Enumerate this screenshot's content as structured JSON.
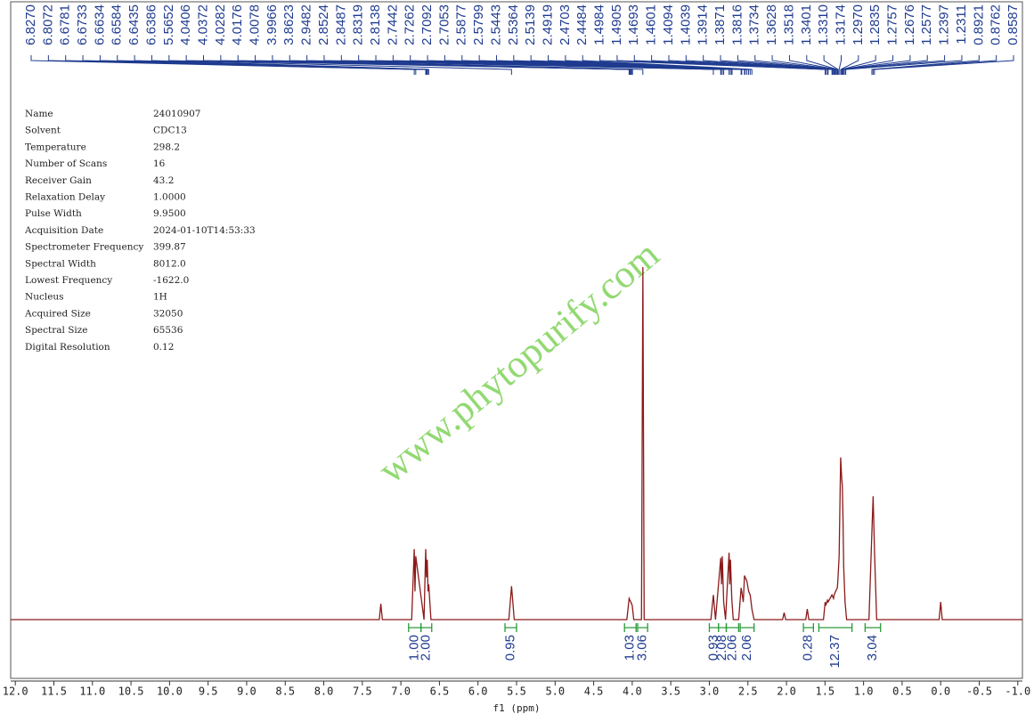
{
  "chart_data": {
    "type": "nmr",
    "xlabel": "f1 (ppm)",
    "xlim": [
      12.06,
      -1.06
    ],
    "ylim": [
      0,
      100
    ],
    "xticks": [
      {
        "value": 12,
        "label": "12.0"
      },
      11.5,
      {
        "value": 11,
        "label": "11.0"
      },
      10.5,
      {
        "value": 10,
        "label": "10.0"
      },
      9.5,
      {
        "value": 9,
        "label": "9.0"
      },
      8.5,
      {
        "value": 8,
        "label": "8.0"
      },
      7.5,
      {
        "value": 7,
        "label": "7.0"
      },
      6.5,
      {
        "value": 6,
        "label": "6.0"
      },
      5.5,
      {
        "value": 5,
        "label": "5.0"
      },
      4.5,
      {
        "value": 4,
        "label": "4.0"
      },
      3.5,
      {
        "value": 3,
        "label": "3.0"
      },
      2.5,
      {
        "value": 2,
        "label": "2.0"
      },
      1.5,
      {
        "value": 1,
        "label": "1.0"
      },
      0.5,
      {
        "value": 0,
        "label": "0.0"
      },
      -0.5,
      {
        "value": -1,
        "label": "-1.0"
      }
    ],
    "peak_labels": [
      {
        "value": 6.827,
        "label": "6.8270"
      },
      6.8072,
      6.6781,
      6.6733,
      6.6634,
      6.6584,
      6.6435,
      6.6386,
      5.5652,
      4.0406,
      4.0372,
      4.0282,
      4.0176,
      4.0078,
      3.9966,
      3.8623,
      2.9482,
      2.8524,
      2.8487,
      2.8319,
      2.8138,
      2.7442,
      2.7262,
      2.7092,
      2.7053,
      2.5877,
      2.5799,
      2.5443,
      2.5364,
      2.5139,
      2.4919,
      2.4703,
      2.4484,
      1.4984,
      1.4905,
      1.4693,
      1.4601,
      1.4094,
      1.4039,
      1.3914,
      1.3871,
      1.3816,
      1.3734,
      1.3628,
      1.3518,
      1.3401,
      {
        "value": 1.331,
        "label": "1.3310"
      },
      1.3174,
      {
        "value": 1.297,
        "label": "1.2970"
      },
      1.2835,
      1.2757,
      1.2676,
      1.2577,
      1.2397,
      1.2311,
      0.8921,
      0.8762,
      0.8587
    ],
    "integrals": {
      "ranges": [
        [
          6.9,
          6.74
        ],
        [
          6.74,
          6.6
        ],
        [
          5.65,
          5.5
        ],
        [
          4.1,
          3.95
        ],
        [
          3.93,
          3.8
        ],
        [
          3.0,
          2.88
        ],
        [
          2.88,
          2.78
        ],
        [
          2.78,
          2.62
        ],
        [
          2.6,
          2.42
        ],
        [
          1.78,
          1.65
        ],
        [
          1.58,
          1.15
        ],
        [
          0.98,
          0.78
        ]
      ],
      "values": [
        1.0,
        2.0,
        0.95,
        1.03,
        3.06,
        0.93,
        2.08,
        2.06,
        2.06,
        0.28,
        12.37,
        3.04
      ],
      "value_labels": [
        "1.00",
        "2.00",
        "0.95",
        "1.03",
        "3.06",
        "0.93",
        "2.08",
        "2.06",
        "2.06",
        "0.28",
        "12.37",
        "3.04"
      ]
    },
    "series": [
      {
        "color": "#8b1a1a",
        "x": [
          12.06,
          7.28,
          7.26,
          7.24,
          6.86,
          6.827,
          6.817,
          6.807,
          6.7,
          6.678,
          6.668,
          6.658,
          6.648,
          6.639,
          6.61,
          5.6,
          5.565,
          5.53,
          4.07,
          4.04,
          4.03,
          4.018,
          4.0,
          3.98,
          3.88,
          3.862,
          3.845,
          2.98,
          2.948,
          2.92,
          2.852,
          2.842,
          2.832,
          2.814,
          2.79,
          2.744,
          2.735,
          2.726,
          2.709,
          2.69,
          2.62,
          2.588,
          2.58,
          2.56,
          2.544,
          2.536,
          2.514,
          2.49,
          2.47,
          2.448,
          2.42,
          2.05,
          2.03,
          2.01,
          1.75,
          1.73,
          1.71,
          1.52,
          1.498,
          1.49,
          1.469,
          1.46,
          1.41,
          1.39,
          1.382,
          1.363,
          1.34,
          1.331,
          1.317,
          1.297,
          1.2835,
          1.2757,
          1.2676,
          1.2577,
          1.24,
          1.22,
          0.93,
          0.892,
          0.876,
          0.859,
          0.83,
          0.02,
          0.0,
          -0.02,
          -1.06
        ],
        "values": [
          0,
          0,
          4.5,
          0,
          0,
          20,
          8,
          18,
          0,
          20,
          12,
          17,
          8,
          10,
          0,
          0,
          9.5,
          0,
          0,
          6,
          5.5,
          5,
          4,
          0,
          0,
          100,
          0,
          0,
          7,
          0,
          17.5,
          10,
          18,
          5,
          0,
          19,
          10,
          17,
          6,
          0,
          0,
          9,
          8,
          5,
          12.5,
          12,
          11,
          8,
          7,
          3,
          0,
          0,
          2,
          0,
          0,
          3,
          0,
          0,
          5,
          4,
          5.5,
          5,
          7,
          6,
          7,
          8,
          9,
          12,
          18,
          46,
          40,
          38,
          30,
          15,
          5,
          0,
          0,
          25,
          35,
          20,
          0,
          0,
          5,
          0,
          0
        ]
      }
    ],
    "watermark": "www.phytopurify.com",
    "parameters": [
      {
        "label": "Name",
        "value": "24010907"
      },
      {
        "label": "Solvent",
        "value": "CDC13"
      },
      {
        "label": "Temperature",
        "value": "298.2"
      },
      {
        "label": "Number of Scans",
        "value": "16"
      },
      {
        "label": "Receiver Gain",
        "value": "43.2"
      },
      {
        "label": "Relaxation Delay",
        "value": "1.0000"
      },
      {
        "label": "Pulse Width",
        "value": "9.9500"
      },
      {
        "label": "Acquisition Date",
        "value": "2024-01-10T14:53:33"
      },
      {
        "label": "Spectrometer Frequency",
        "value": "399.87"
      },
      {
        "label": "Spectral Width",
        "value": "8012.0"
      },
      {
        "label": "Lowest Frequency",
        "value": "-1622.0"
      },
      {
        "label": "Nucleus",
        "value": "1H"
      },
      {
        "label": "Acquired Size",
        "value": "32050"
      },
      {
        "label": "Spectral Size",
        "value": "65536"
      },
      {
        "label": "Digital Resolution",
        "value": "0.12"
      }
    ]
  }
}
